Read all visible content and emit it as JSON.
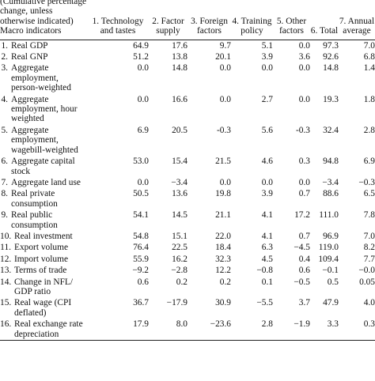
{
  "header": {
    "label": "(Cumulative percentage change, unless otherwise indicated) Macro indicators",
    "columns": [
      "1. Technology and tastes",
      "2. Factor supply",
      "3. Foreign factors",
      "4. Training policy",
      "5. Other factors",
      "6. Total",
      "7. Annual average"
    ]
  },
  "rows": [
    {
      "num": "1.",
      "label": "Real GDP",
      "values": [
        "64.9",
        "17.6",
        "9.7",
        "5.1",
        "0.0",
        "97.3",
        "7.0"
      ]
    },
    {
      "num": "2.",
      "label": "Real GNP",
      "values": [
        "51.2",
        "13.8",
        "20.1",
        "3.9",
        "3.6",
        "92.6",
        "6.8"
      ]
    },
    {
      "num": "3.",
      "label": "Aggregate employment, person-weighted",
      "values": [
        "0.0",
        "14.8",
        "0.0",
        "0.0",
        "0.0",
        "14.8",
        "1.4"
      ]
    },
    {
      "num": "4.",
      "label": "Aggregate employment, hour weighted",
      "values": [
        "0.0",
        "16.6",
        "0.0",
        "2.7",
        "0.0",
        "19.3",
        "1.8"
      ]
    },
    {
      "num": "5.",
      "label": "Aggregate employment, wagebill-weighted",
      "values": [
        "6.9",
        "20.5",
        "-0.3",
        "5.6",
        "-0.3",
        "32.4",
        "2.8"
      ]
    },
    {
      "num": "6.",
      "label": "Aggregate capital stock",
      "values": [
        "53.0",
        "15.4",
        "21.5",
        "4.6",
        "0.3",
        "94.8",
        "6.9"
      ]
    },
    {
      "num": "7.",
      "label": "Aggregate land use",
      "values": [
        "0.0",
        "−3.4",
        "0.0",
        "0.0",
        "0.0",
        "−3.4",
        "−0.3"
      ]
    },
    {
      "num": "8.",
      "label": "Real private consumption",
      "values": [
        "50.5",
        "13.6",
        "19.8",
        "3.9",
        "0.7",
        "88.6",
        "6.5"
      ]
    },
    {
      "num": "9.",
      "label": "Real public consumption",
      "values": [
        "54.1",
        "14.5",
        "21.1",
        "4.1",
        "17.2",
        "111.0",
        "7.8"
      ]
    },
    {
      "num": "10.",
      "label": "Real investment",
      "values": [
        "54.8",
        "15.1",
        "22.0",
        "4.1",
        "0.7",
        "96.9",
        "7.0"
      ]
    },
    {
      "num": "11.",
      "label": "Export volume",
      "values": [
        "76.4",
        "22.5",
        "18.4",
        "6.3",
        "−4.5",
        "119.0",
        "8.2"
      ]
    },
    {
      "num": "12.",
      "label": "Import volume",
      "values": [
        "55.9",
        "16.2",
        "32.3",
        "4.5",
        "0.4",
        "109.4",
        "7.7"
      ]
    },
    {
      "num": "13.",
      "label": "Terms of trade",
      "values": [
        "−9.2",
        "−2.8",
        "12.2",
        "−0.8",
        "0.6",
        "−0.1",
        "−0.0"
      ]
    },
    {
      "num": "14.",
      "label": "Change in NFL/ GDP ratio",
      "values": [
        "0.6",
        "0.2",
        "0.2",
        "0.1",
        "−0.5",
        "0.5",
        "0.05"
      ]
    },
    {
      "num": "15.",
      "label": "Real wage (CPI deflated)",
      "values": [
        "36.7",
        "−17.9",
        "30.9",
        "−5.5",
        "3.7",
        "47.9",
        "4.0"
      ]
    },
    {
      "num": "16.",
      "label": "Real exchange rate depreciation",
      "values": [
        "17.9",
        "8.0",
        "−23.6",
        "2.8",
        "−1.9",
        "3.3",
        "0.3"
      ]
    }
  ]
}
